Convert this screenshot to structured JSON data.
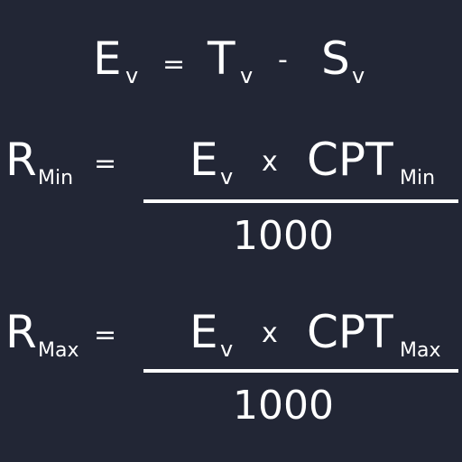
{
  "background": "#222635",
  "text_color": "#ffffff",
  "eq1": {
    "E": "E",
    "E_sub": "v",
    "equals": "=",
    "T": "T",
    "T_sub": "v",
    "minus": "-",
    "S": "S",
    "S_sub": "v"
  },
  "eq2": {
    "lhs": "R",
    "lhs_sub": "Min",
    "equals": "=",
    "numerator": {
      "E": "E",
      "E_sub": "v",
      "times": "x",
      "cpt": "CPT",
      "cpt_sub": "Min"
    },
    "denominator": "1000"
  },
  "eq3": {
    "lhs": "R",
    "lhs_sub": "Max",
    "equals": "=",
    "numerator": {
      "E": "E",
      "E_sub": "v",
      "times": "x",
      "cpt": "CPT",
      "cpt_sub": "Max"
    },
    "denominator": "1000"
  }
}
